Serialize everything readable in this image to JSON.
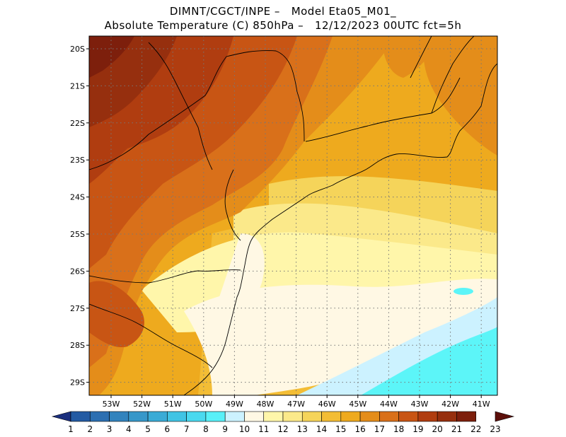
{
  "title": {
    "line1": "DIMNT/CGCT/INPE –   Model Eta05_M01_",
    "line2": "Absolute Temperature (C) 850hPa –   12/12/2023 00UTC fct=5h"
  },
  "map": {
    "lat_labels": [
      "20S",
      "21S",
      "22S",
      "23S",
      "24S",
      "25S",
      "26S",
      "27S",
      "28S",
      "29S"
    ],
    "lon_labels": [
      "53W",
      "52W",
      "51W",
      "50W",
      "49W",
      "48W",
      "47W",
      "46W",
      "45W",
      "44W",
      "43W",
      "42W",
      "41W"
    ],
    "colors": {
      "c10": "#ccf2ff",
      "c11": "#fff8e4",
      "c12": "#fff6aa",
      "c13": "#fbe98a",
      "c14": "#f5d45a",
      "c15": "#f3bd35",
      "c16": "#eeaa1e",
      "c17": "#e48d1a",
      "c18": "#d9701a",
      "c19": "#c85514",
      "c20": "#b03d10",
      "c21": "#962f0e",
      "c22": "#7d1f0c",
      "cyan": "#5cf5f8"
    }
  },
  "colorbar": {
    "labels": [
      "1",
      "2",
      "3",
      "4",
      "5",
      "6",
      "7",
      "8",
      "9",
      "10",
      "11",
      "12",
      "13",
      "14",
      "15",
      "16",
      "17",
      "18",
      "19",
      "20",
      "21",
      "22",
      "23"
    ],
    "colors": [
      "#1b2f7e",
      "#245ba3",
      "#2c6fb1",
      "#3283bd",
      "#3797c9",
      "#3aabd6",
      "#40c4e4",
      "#4ad9ef",
      "#58f0f8",
      "#ccf2ff",
      "#fff8e4",
      "#fff6aa",
      "#fbe98a",
      "#f5d45a",
      "#f3bd35",
      "#eeaa1e",
      "#e48d1a",
      "#d9701a",
      "#c85514",
      "#b03d10",
      "#962f0e",
      "#7d1f0c",
      "#5c0f0a"
    ]
  }
}
